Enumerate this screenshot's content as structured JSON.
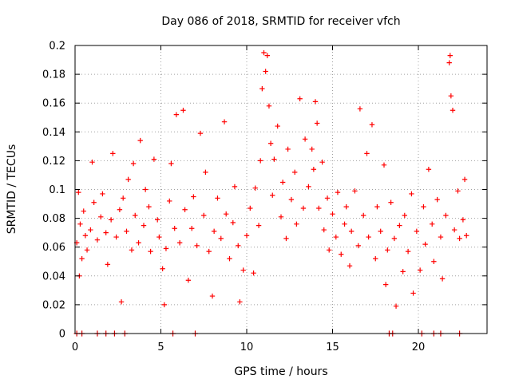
{
  "chart_data": {
    "type": "scatter",
    "title": "Day 086 of 2018, SRMTID for receiver vfch",
    "xlabel": "GPS time / hours",
    "ylabel": "SRMTID / TECUs",
    "xlim": [
      0,
      24
    ],
    "ylim": [
      0,
      0.2
    ],
    "x_ticks": [
      0,
      5,
      10,
      15,
      20
    ],
    "x_tick_labels": [
      "0",
      "5",
      "10",
      "15",
      "20"
    ],
    "y_ticks": [
      0,
      0.02,
      0.04,
      0.06,
      0.08,
      0.1,
      0.12,
      0.14,
      0.16,
      0.18,
      0.2
    ],
    "y_tick_labels": [
      "0",
      "0.02",
      "0.04",
      "0.06",
      "0.08",
      "0.1",
      "0.12",
      "0.14",
      "0.16",
      "0.18",
      "0.2"
    ],
    "grid": true,
    "legend": "none",
    "marker": "plus",
    "colors": {
      "points": "#ff0000",
      "zero_markers": "#dd0000",
      "grid": "#a0a0a0",
      "axes": "#000000"
    },
    "series": [
      {
        "values": [
          [
            0.1,
            0.063
          ],
          [
            0.2,
            0.098
          ],
          [
            0.25,
            0.04
          ],
          [
            0.3,
            0.076
          ],
          [
            0.4,
            0.052
          ],
          [
            0.5,
            0.085
          ],
          [
            0.6,
            0.068
          ],
          [
            0.7,
            0.058
          ],
          [
            0.9,
            0.072
          ],
          [
            1.0,
            0.119
          ],
          [
            1.1,
            0.091
          ],
          [
            1.3,
            0.065
          ],
          [
            1.5,
            0.081
          ],
          [
            1.6,
            0.097
          ],
          [
            1.8,
            0.07
          ],
          [
            1.9,
            0.048
          ],
          [
            2.1,
            0.079
          ],
          [
            2.2,
            0.125
          ],
          [
            2.4,
            0.067
          ],
          [
            2.6,
            0.086
          ],
          [
            2.7,
            0.022
          ],
          [
            2.8,
            0.094
          ],
          [
            3.0,
            0.071
          ],
          [
            3.1,
            0.107
          ],
          [
            3.3,
            0.058
          ],
          [
            3.4,
            0.118
          ],
          [
            3.5,
            0.082
          ],
          [
            3.7,
            0.063
          ],
          [
            3.8,
            0.134
          ],
          [
            4.0,
            0.075
          ],
          [
            4.1,
            0.1
          ],
          [
            4.3,
            0.088
          ],
          [
            4.4,
            0.057
          ],
          [
            4.6,
            0.121
          ],
          [
            4.8,
            0.079
          ],
          [
            4.9,
            0.067
          ],
          [
            5.1,
            0.045
          ],
          [
            5.2,
            0.02
          ],
          [
            5.3,
            0.059
          ],
          [
            5.5,
            0.092
          ],
          [
            5.6,
            0.118
          ],
          [
            5.8,
            0.073
          ],
          [
            5.9,
            0.152
          ],
          [
            6.1,
            0.063
          ],
          [
            6.3,
            0.155
          ],
          [
            6.4,
            0.086
          ],
          [
            6.6,
            0.037
          ],
          [
            6.8,
            0.073
          ],
          [
            6.9,
            0.095
          ],
          [
            7.1,
            0.061
          ],
          [
            7.3,
            0.139
          ],
          [
            7.5,
            0.082
          ],
          [
            7.6,
            0.112
          ],
          [
            7.8,
            0.057
          ],
          [
            8.0,
            0.026
          ],
          [
            8.1,
            0.071
          ],
          [
            8.3,
            0.094
          ],
          [
            8.5,
            0.066
          ],
          [
            8.7,
            0.147
          ],
          [
            8.8,
            0.083
          ],
          [
            9.0,
            0.052
          ],
          [
            9.2,
            0.077
          ],
          [
            9.3,
            0.102
          ],
          [
            9.5,
            0.061
          ],
          [
            9.6,
            0.022
          ],
          [
            9.8,
            0.044
          ],
          [
            10.0,
            0.068
          ],
          [
            10.2,
            0.087
          ],
          [
            10.4,
            0.042
          ],
          [
            10.5,
            0.101
          ],
          [
            10.7,
            0.075
          ],
          [
            10.8,
            0.12
          ],
          [
            10.9,
            0.17
          ],
          [
            11.0,
            0.195
          ],
          [
            11.1,
            0.182
          ],
          [
            11.2,
            0.193
          ],
          [
            11.3,
            0.158
          ],
          [
            11.4,
            0.132
          ],
          [
            11.5,
            0.096
          ],
          [
            11.6,
            0.121
          ],
          [
            11.8,
            0.144
          ],
          [
            12.0,
            0.081
          ],
          [
            12.1,
            0.105
          ],
          [
            12.3,
            0.066
          ],
          [
            12.4,
            0.128
          ],
          [
            12.6,
            0.093
          ],
          [
            12.8,
            0.112
          ],
          [
            12.9,
            0.076
          ],
          [
            13.1,
            0.163
          ],
          [
            13.3,
            0.087
          ],
          [
            13.4,
            0.135
          ],
          [
            13.6,
            0.102
          ],
          [
            13.8,
            0.128
          ],
          [
            13.9,
            0.114
          ],
          [
            14.0,
            0.161
          ],
          [
            14.1,
            0.146
          ],
          [
            14.2,
            0.087
          ],
          [
            14.4,
            0.119
          ],
          [
            14.5,
            0.072
          ],
          [
            14.7,
            0.094
          ],
          [
            14.8,
            0.058
          ],
          [
            15.0,
            0.083
          ],
          [
            15.2,
            0.067
          ],
          [
            15.3,
            0.098
          ],
          [
            15.5,
            0.055
          ],
          [
            15.7,
            0.076
          ],
          [
            15.8,
            0.088
          ],
          [
            16.0,
            0.047
          ],
          [
            16.1,
            0.071
          ],
          [
            16.3,
            0.099
          ],
          [
            16.5,
            0.061
          ],
          [
            16.6,
            0.156
          ],
          [
            16.8,
            0.082
          ],
          [
            17.0,
            0.125
          ],
          [
            17.1,
            0.067
          ],
          [
            17.3,
            0.145
          ],
          [
            17.5,
            0.052
          ],
          [
            17.6,
            0.088
          ],
          [
            17.8,
            0.071
          ],
          [
            18.0,
            0.117
          ],
          [
            18.1,
            0.034
          ],
          [
            18.2,
            0.058
          ],
          [
            18.4,
            0.091
          ],
          [
            18.6,
            0.066
          ],
          [
            18.7,
            0.019
          ],
          [
            18.9,
            0.075
          ],
          [
            19.1,
            0.043
          ],
          [
            19.2,
            0.082
          ],
          [
            19.4,
            0.057
          ],
          [
            19.6,
            0.097
          ],
          [
            19.7,
            0.028
          ],
          [
            19.9,
            0.071
          ],
          [
            20.1,
            0.044
          ],
          [
            20.3,
            0.088
          ],
          [
            20.4,
            0.062
          ],
          [
            20.6,
            0.114
          ],
          [
            20.8,
            0.076
          ],
          [
            20.9,
            0.05
          ],
          [
            21.1,
            0.093
          ],
          [
            21.3,
            0.067
          ],
          [
            21.4,
            0.038
          ],
          [
            21.6,
            0.082
          ],
          [
            21.8,
            0.188
          ],
          [
            21.85,
            0.193
          ],
          [
            21.9,
            0.165
          ],
          [
            22.0,
            0.155
          ],
          [
            22.1,
            0.072
          ],
          [
            22.3,
            0.099
          ],
          [
            22.4,
            0.066
          ],
          [
            22.6,
            0.079
          ],
          [
            22.7,
            0.107
          ],
          [
            22.8,
            0.068
          ]
        ]
      },
      {
        "values": [
          [
            0.1,
            0
          ],
          [
            0.4,
            0
          ],
          [
            1.3,
            0
          ],
          [
            1.8,
            0
          ],
          [
            2.3,
            0
          ],
          [
            2.9,
            0
          ],
          [
            5.7,
            0
          ],
          [
            7.0,
            0
          ],
          [
            18.3,
            0
          ],
          [
            18.5,
            0
          ],
          [
            20.2,
            0
          ],
          [
            20.9,
            0
          ],
          [
            21.3,
            0
          ],
          [
            22.4,
            0
          ]
        ]
      }
    ]
  }
}
